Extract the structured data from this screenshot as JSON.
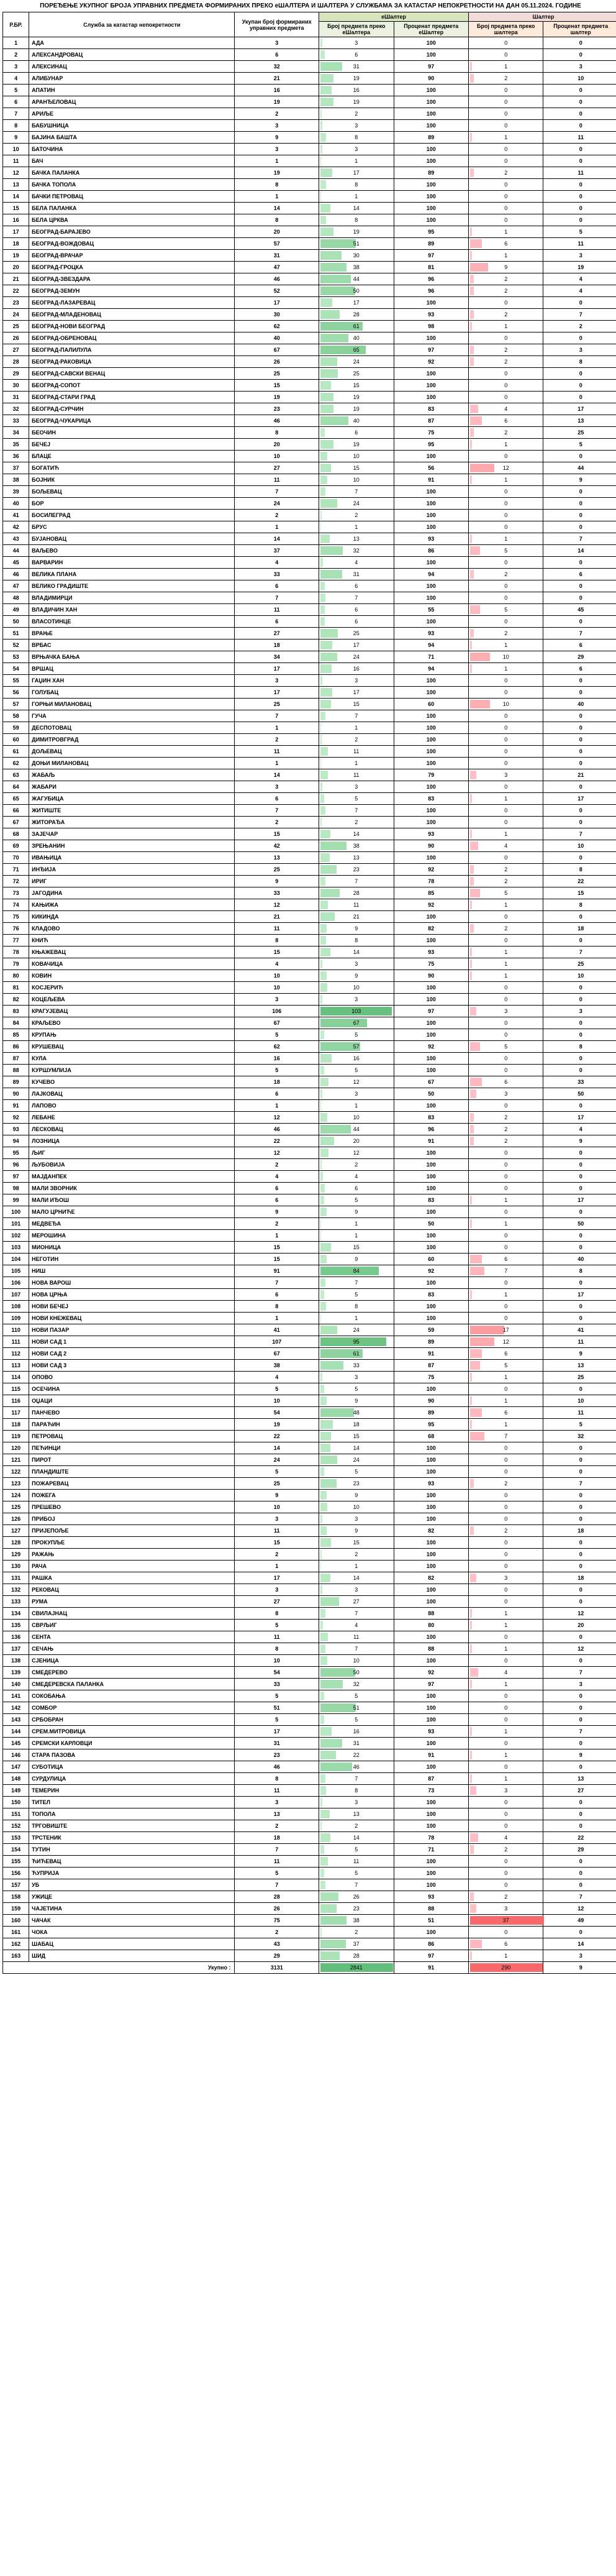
{
  "title": "ПОРЕЂЕЊЕ УКУПНОГ БРОЈА УПРАВНИХ ПРЕДМЕТА ФОРМИРАНИХ ПРЕКО еШАЛТЕРА И ШАЛТЕРА У СЛУЖБАМА ЗА КАТАСТАР НЕПОКРЕТНОСТИ НА ДАН 05.11.2024. ГОДИНЕ",
  "headers": {
    "rb": "Р.БР.",
    "name": "Служба за катастар непокретности",
    "total": "Укупан број формираних управних предмета",
    "e_group": "еШалтер",
    "s_group": "Шалтер",
    "e_cnt": "Број предмета преко еШалтера",
    "e_pct": "Проценат предмета еШалтер",
    "s_cnt": "Број предмета преко шалтера",
    "s_pct": "Проценат предмета шалтер"
  },
  "colors": {
    "e_bar": "#c6efce",
    "s_bar": "#ffc7ce",
    "e_bar_strong": "#63be7b",
    "s_bar_strong": "#f8696b"
  },
  "footer": {
    "label": "Укупно :",
    "total": 3131,
    "e_cnt": 2841,
    "e_pct": 91,
    "s_cnt": 290,
    "s_pct": 9
  },
  "max_total": 107,
  "rows": [
    {
      "n": "АДА",
      "t": 3,
      "ec": 3,
      "ep": 100,
      "sc": 0,
      "sp": 0
    },
    {
      "n": "АЛЕКСАНДРОВАЦ",
      "t": 6,
      "ec": 6,
      "ep": 100,
      "sc": 0,
      "sp": 0
    },
    {
      "n": "АЛЕКСИНАЦ",
      "t": 32,
      "ec": 31,
      "ep": 97,
      "sc": 1,
      "sp": 3
    },
    {
      "n": "АЛИБУНАР",
      "t": 21,
      "ec": 19,
      "ep": 90,
      "sc": 2,
      "sp": 10
    },
    {
      "n": "АПАТИН",
      "t": 16,
      "ec": 16,
      "ep": 100,
      "sc": 0,
      "sp": 0
    },
    {
      "n": "АРАНЂЕЛОВАЦ",
      "t": 19,
      "ec": 19,
      "ep": 100,
      "sc": 0,
      "sp": 0
    },
    {
      "n": "АРИЉЕ",
      "t": 2,
      "ec": 2,
      "ep": 100,
      "sc": 0,
      "sp": 0
    },
    {
      "n": "БАБУШНИЦА",
      "t": 3,
      "ec": 3,
      "ep": 100,
      "sc": 0,
      "sp": 0
    },
    {
      "n": "БАЈИНА БАШТА",
      "t": 9,
      "ec": 8,
      "ep": 89,
      "sc": 1,
      "sp": 11
    },
    {
      "n": "БАТОЧИНА",
      "t": 3,
      "ec": 3,
      "ep": 100,
      "sc": 0,
      "sp": 0
    },
    {
      "n": "БАЧ",
      "t": 1,
      "ec": 1,
      "ep": 100,
      "sc": 0,
      "sp": 0
    },
    {
      "n": "БАЧКА ПАЛАНКА",
      "t": 19,
      "ec": 17,
      "ep": 89,
      "sc": 2,
      "sp": 11
    },
    {
      "n": "БАЧКА ТОПОЛА",
      "t": 8,
      "ec": 8,
      "ep": 100,
      "sc": 0,
      "sp": 0
    },
    {
      "n": "БАЧКИ ПЕТРОВАЦ",
      "t": 1,
      "ec": 1,
      "ep": 100,
      "sc": 0,
      "sp": 0
    },
    {
      "n": "БЕЛА ПАЛАНКА",
      "t": 14,
      "ec": 14,
      "ep": 100,
      "sc": 0,
      "sp": 0
    },
    {
      "n": "БЕЛА ЦРКВА",
      "t": 8,
      "ec": 8,
      "ep": 100,
      "sc": 0,
      "sp": 0
    },
    {
      "n": "БЕОГРАД-БАРАЈЕВО",
      "t": 20,
      "ec": 19,
      "ep": 95,
      "sc": 1,
      "sp": 5
    },
    {
      "n": "БЕОГРАД-ВОЖДОВАЦ",
      "t": 57,
      "ec": 51,
      "ep": 89,
      "sc": 6,
      "sp": 11
    },
    {
      "n": "БЕОГРАД-ВРАЧАР",
      "t": 31,
      "ec": 30,
      "ep": 97,
      "sc": 1,
      "sp": 3
    },
    {
      "n": "БЕОГРАД-ГРОЦКА",
      "t": 47,
      "ec": 38,
      "ep": 81,
      "sc": 9,
      "sp": 19
    },
    {
      "n": "БЕОГРАД-ЗВЕЗДАРА",
      "t": 46,
      "ec": 44,
      "ep": 96,
      "sc": 2,
      "sp": 4
    },
    {
      "n": "БЕОГРАД-ЗЕМУН",
      "t": 52,
      "ec": 50,
      "ep": 96,
      "sc": 2,
      "sp": 4
    },
    {
      "n": "БЕОГРАД-ЛАЗАРЕВАЦ",
      "t": 17,
      "ec": 17,
      "ep": 100,
      "sc": 0,
      "sp": 0
    },
    {
      "n": "БЕОГРАД-МЛАДЕНОВАЦ",
      "t": 30,
      "ec": 28,
      "ep": 93,
      "sc": 2,
      "sp": 7
    },
    {
      "n": "БЕОГРАД-НОВИ БЕОГРАД",
      "t": 62,
      "ec": 61,
      "ep": 98,
      "sc": 1,
      "sp": 2
    },
    {
      "n": "БЕОГРАД-ОБРЕНОВАЦ",
      "t": 40,
      "ec": 40,
      "ep": 100,
      "sc": 0,
      "sp": 0
    },
    {
      "n": "БЕОГРАД-ПАЛИЛУЛА",
      "t": 67,
      "ec": 65,
      "ep": 97,
      "sc": 2,
      "sp": 3
    },
    {
      "n": "БЕОГРАД-РАКОВИЦА",
      "t": 26,
      "ec": 24,
      "ep": 92,
      "sc": 2,
      "sp": 8
    },
    {
      "n": "БЕОГРАД-САВСКИ ВЕНАЦ",
      "t": 25,
      "ec": 25,
      "ep": 100,
      "sc": 0,
      "sp": 0
    },
    {
      "n": "БЕОГРАД-СОПОТ",
      "t": 15,
      "ec": 15,
      "ep": 100,
      "sc": 0,
      "sp": 0
    },
    {
      "n": "БЕОГРАД-СТАРИ ГРАД",
      "t": 19,
      "ec": 19,
      "ep": 100,
      "sc": 0,
      "sp": 0
    },
    {
      "n": "БЕОГРАД-СУРЧИН",
      "t": 23,
      "ec": 19,
      "ep": 83,
      "sc": 4,
      "sp": 17
    },
    {
      "n": "БЕОГРАД-ЧУКАРИЦА",
      "t": 46,
      "ec": 40,
      "ep": 87,
      "sc": 6,
      "sp": 13
    },
    {
      "n": "БЕОЧИН",
      "t": 8,
      "ec": 6,
      "ep": 75,
      "sc": 2,
      "sp": 25
    },
    {
      "n": "БЕЧЕЈ",
      "t": 20,
      "ec": 19,
      "ep": 95,
      "sc": 1,
      "sp": 5
    },
    {
      "n": "БЛАЦЕ",
      "t": 10,
      "ec": 10,
      "ep": 100,
      "sc": 0,
      "sp": 0
    },
    {
      "n": "БОГАТИЋ",
      "t": 27,
      "ec": 15,
      "ep": 56,
      "sc": 12,
      "sp": 44
    },
    {
      "n": "БОЈНИК",
      "t": 11,
      "ec": 10,
      "ep": 91,
      "sc": 1,
      "sp": 9
    },
    {
      "n": "БОЉЕВАЦ",
      "t": 7,
      "ec": 7,
      "ep": 100,
      "sc": 0,
      "sp": 0
    },
    {
      "n": "БОР",
      "t": 24,
      "ec": 24,
      "ep": 100,
      "sc": 0,
      "sp": 0
    },
    {
      "n": "БОСИЛЕГРАД",
      "t": 2,
      "ec": 2,
      "ep": 100,
      "sc": 0,
      "sp": 0
    },
    {
      "n": "БРУС",
      "t": 1,
      "ec": 1,
      "ep": 100,
      "sc": 0,
      "sp": 0
    },
    {
      "n": "БУЈАНОВАЦ",
      "t": 14,
      "ec": 13,
      "ep": 93,
      "sc": 1,
      "sp": 7
    },
    {
      "n": "ВАЉЕВО",
      "t": 37,
      "ec": 32,
      "ep": 86,
      "sc": 5,
      "sp": 14
    },
    {
      "n": "ВАРВАРИН",
      "t": 4,
      "ec": 4,
      "ep": 100,
      "sc": 0,
      "sp": 0
    },
    {
      "n": "ВЕЛИКА ПЛАНА",
      "t": 33,
      "ec": 31,
      "ep": 94,
      "sc": 2,
      "sp": 6
    },
    {
      "n": "ВЕЛИКО ГРАДИШТЕ",
      "t": 6,
      "ec": 6,
      "ep": 100,
      "sc": 0,
      "sp": 0
    },
    {
      "n": "ВЛАДИМИРЦИ",
      "t": 7,
      "ec": 7,
      "ep": 100,
      "sc": 0,
      "sp": 0
    },
    {
      "n": "ВЛАДИЧИН ХАН",
      "t": 11,
      "ec": 6,
      "ep": 55,
      "sc": 5,
      "sp": 45
    },
    {
      "n": "ВЛАСОТИНЦЕ",
      "t": 6,
      "ec": 6,
      "ep": 100,
      "sc": 0,
      "sp": 0
    },
    {
      "n": "ВРАЊЕ",
      "t": 27,
      "ec": 25,
      "ep": 93,
      "sc": 2,
      "sp": 7
    },
    {
      "n": "ВРБАС",
      "t": 18,
      "ec": 17,
      "ep": 94,
      "sc": 1,
      "sp": 6
    },
    {
      "n": "ВРЊАЧКА БАЊА",
      "t": 34,
      "ec": 24,
      "ep": 71,
      "sc": 10,
      "sp": 29
    },
    {
      "n": "ВРШАЦ",
      "t": 17,
      "ec": 16,
      "ep": 94,
      "sc": 1,
      "sp": 6
    },
    {
      "n": "ГАЏИН ХАН",
      "t": 3,
      "ec": 3,
      "ep": 100,
      "sc": 0,
      "sp": 0
    },
    {
      "n": "ГОЛУБАЦ",
      "t": 17,
      "ec": 17,
      "ep": 100,
      "sc": 0,
      "sp": 0
    },
    {
      "n": "ГОРЊИ МИЛАНОВАЦ",
      "t": 25,
      "ec": 15,
      "ep": 60,
      "sc": 10,
      "sp": 40
    },
    {
      "n": "ГУЧА",
      "t": 7,
      "ec": 7,
      "ep": 100,
      "sc": 0,
      "sp": 0
    },
    {
      "n": "ДЕСПОТОВАЦ",
      "t": 1,
      "ec": 1,
      "ep": 100,
      "sc": 0,
      "sp": 0
    },
    {
      "n": "ДИМИТРОВГРАД",
      "t": 2,
      "ec": 2,
      "ep": 100,
      "sc": 0,
      "sp": 0
    },
    {
      "n": "ДОЉЕВАЦ",
      "t": 11,
      "ec": 11,
      "ep": 100,
      "sc": 0,
      "sp": 0
    },
    {
      "n": "ДОЊИ МИЛАНОВАЦ",
      "t": 1,
      "ec": 1,
      "ep": 100,
      "sc": 0,
      "sp": 0
    },
    {
      "n": "ЖАБАЉ",
      "t": 14,
      "ec": 11,
      "ep": 79,
      "sc": 3,
      "sp": 21
    },
    {
      "n": "ЖАБАРИ",
      "t": 3,
      "ec": 3,
      "ep": 100,
      "sc": 0,
      "sp": 0
    },
    {
      "n": "ЖАГУБИЦА",
      "t": 6,
      "ec": 5,
      "ep": 83,
      "sc": 1,
      "sp": 17
    },
    {
      "n": "ЖИТИШТЕ",
      "t": 7,
      "ec": 7,
      "ep": 100,
      "sc": 0,
      "sp": 0
    },
    {
      "n": "ЖИТОРАЂА",
      "t": 2,
      "ec": 2,
      "ep": 100,
      "sc": 0,
      "sp": 0
    },
    {
      "n": "ЗАЈЕЧАР",
      "t": 15,
      "ec": 14,
      "ep": 93,
      "sc": 1,
      "sp": 7
    },
    {
      "n": "ЗРЕЊАНИН",
      "t": 42,
      "ec": 38,
      "ep": 90,
      "sc": 4,
      "sp": 10
    },
    {
      "n": "ИВАЊИЦА",
      "t": 13,
      "ec": 13,
      "ep": 100,
      "sc": 0,
      "sp": 0
    },
    {
      "n": "ИНЂИЈА",
      "t": 25,
      "ec": 23,
      "ep": 92,
      "sc": 2,
      "sp": 8
    },
    {
      "n": "ИРИГ",
      "t": 9,
      "ec": 7,
      "ep": 78,
      "sc": 2,
      "sp": 22
    },
    {
      "n": "ЈАГОДИНА",
      "t": 33,
      "ec": 28,
      "ep": 85,
      "sc": 5,
      "sp": 15
    },
    {
      "n": "КАЊИЖА",
      "t": 12,
      "ec": 11,
      "ep": 92,
      "sc": 1,
      "sp": 8
    },
    {
      "n": "КИКИНДА",
      "t": 21,
      "ec": 21,
      "ep": 100,
      "sc": 0,
      "sp": 0
    },
    {
      "n": "КЛАДОВО",
      "t": 11,
      "ec": 9,
      "ep": 82,
      "sc": 2,
      "sp": 18
    },
    {
      "n": "КНИЋ",
      "t": 8,
      "ec": 8,
      "ep": 100,
      "sc": 0,
      "sp": 0
    },
    {
      "n": "КЊАЖЕВАЦ",
      "t": 15,
      "ec": 14,
      "ep": 93,
      "sc": 1,
      "sp": 7
    },
    {
      "n": "КОВАЧИЦА",
      "t": 4,
      "ec": 3,
      "ep": 75,
      "sc": 1,
      "sp": 25
    },
    {
      "n": "КОВИН",
      "t": 10,
      "ec": 9,
      "ep": 90,
      "sc": 1,
      "sp": 10
    },
    {
      "n": "КОСЈЕРИЋ",
      "t": 10,
      "ec": 10,
      "ep": 100,
      "sc": 0,
      "sp": 0
    },
    {
      "n": "КОЦЕЉЕВА",
      "t": 3,
      "ec": 3,
      "ep": 100,
      "sc": 0,
      "sp": 0
    },
    {
      "n": "КРАГУЈЕВАЦ",
      "t": 106,
      "ec": 103,
      "ep": 97,
      "sc": 3,
      "sp": 3
    },
    {
      "n": "КРАЉЕВО",
      "t": 67,
      "ec": 67,
      "ep": 100,
      "sc": 0,
      "sp": 0
    },
    {
      "n": "КРУПАЊ",
      "t": 5,
      "ec": 5,
      "ep": 100,
      "sc": 0,
      "sp": 0
    },
    {
      "n": "КРУШЕВАЦ",
      "t": 62,
      "ec": 57,
      "ep": 92,
      "sc": 5,
      "sp": 8
    },
    {
      "n": "КУЛА",
      "t": 16,
      "ec": 16,
      "ep": 100,
      "sc": 0,
      "sp": 0
    },
    {
      "n": "КУРШУМЛИЈА",
      "t": 5,
      "ec": 5,
      "ep": 100,
      "sc": 0,
      "sp": 0
    },
    {
      "n": "КУЧЕВО",
      "t": 18,
      "ec": 12,
      "ep": 67,
      "sc": 6,
      "sp": 33
    },
    {
      "n": "ЛАЈКОВАЦ",
      "t": 6,
      "ec": 3,
      "ep": 50,
      "sc": 3,
      "sp": 50
    },
    {
      "n": "ЛАПОВО",
      "t": 1,
      "ec": 1,
      "ep": 100,
      "sc": 0,
      "sp": 0
    },
    {
      "n": "ЛЕБАНЕ",
      "t": 12,
      "ec": 10,
      "ep": 83,
      "sc": 2,
      "sp": 17
    },
    {
      "n": "ЛЕСКОВАЦ",
      "t": 46,
      "ec": 44,
      "ep": 96,
      "sc": 2,
      "sp": 4
    },
    {
      "n": "ЛОЗНИЦА",
      "t": 22,
      "ec": 20,
      "ep": 91,
      "sc": 2,
      "sp": 9
    },
    {
      "n": "ЉИГ",
      "t": 12,
      "ec": 12,
      "ep": 100,
      "sc": 0,
      "sp": 0
    },
    {
      "n": "ЉУБОВИЈА",
      "t": 2,
      "ec": 2,
      "ep": 100,
      "sc": 0,
      "sp": 0
    },
    {
      "n": "МАЈДАНПЕК",
      "t": 4,
      "ec": 4,
      "ep": 100,
      "sc": 0,
      "sp": 0
    },
    {
      "n": "МАЛИ ЗВОРНИК",
      "t": 6,
      "ec": 6,
      "ep": 100,
      "sc": 0,
      "sp": 0
    },
    {
      "n": "МАЛИ ИЂОШ",
      "t": 6,
      "ec": 5,
      "ep": 83,
      "sc": 1,
      "sp": 17
    },
    {
      "n": "МАЛО ЦРНИЋЕ",
      "t": 9,
      "ec": 9,
      "ep": 100,
      "sc": 0,
      "sp": 0
    },
    {
      "n": "МЕДВЕЂА",
      "t": 2,
      "ec": 1,
      "ep": 50,
      "sc": 1,
      "sp": 50
    },
    {
      "n": "МЕРОШИНА",
      "t": 1,
      "ec": 1,
      "ep": 100,
      "sc": 0,
      "sp": 0
    },
    {
      "n": "МИОНИЦА",
      "t": 15,
      "ec": 15,
      "ep": 100,
      "sc": 0,
      "sp": 0
    },
    {
      "n": "НЕГОТИН",
      "t": 15,
      "ec": 9,
      "ep": 60,
      "sc": 6,
      "sp": 40
    },
    {
      "n": "НИШ",
      "t": 91,
      "ec": 84,
      "ep": 92,
      "sc": 7,
      "sp": 8
    },
    {
      "n": "НОВА ВАРОШ",
      "t": 7,
      "ec": 7,
      "ep": 100,
      "sc": 0,
      "sp": 0
    },
    {
      "n": "НОВА ЦРЊА",
      "t": 6,
      "ec": 5,
      "ep": 83,
      "sc": 1,
      "sp": 17
    },
    {
      "n": "НОВИ БЕЧЕЈ",
      "t": 8,
      "ec": 8,
      "ep": 100,
      "sc": 0,
      "sp": 0
    },
    {
      "n": "НОВИ КНЕЖЕВАЦ",
      "t": 1,
      "ec": 1,
      "ep": 100,
      "sc": 0,
      "sp": 0
    },
    {
      "n": "НОВИ ПАЗАР",
      "t": 41,
      "ec": 24,
      "ep": 59,
      "sc": 17,
      "sp": 41
    },
    {
      "n": "НОВИ САД 1",
      "t": 107,
      "ec": 95,
      "ep": 89,
      "sc": 12,
      "sp": 11
    },
    {
      "n": "НОВИ САД 2",
      "t": 67,
      "ec": 61,
      "ep": 91,
      "sc": 6,
      "sp": 9
    },
    {
      "n": "НОВИ САД 3",
      "t": 38,
      "ec": 33,
      "ep": 87,
      "sc": 5,
      "sp": 13
    },
    {
      "n": "ОПОВО",
      "t": 4,
      "ec": 3,
      "ep": 75,
      "sc": 1,
      "sp": 25
    },
    {
      "n": "ОСЕЧИНА",
      "t": 5,
      "ec": 5,
      "ep": 100,
      "sc": 0,
      "sp": 0
    },
    {
      "n": "ОЏАЦИ",
      "t": 10,
      "ec": 9,
      "ep": 90,
      "sc": 1,
      "sp": 10
    },
    {
      "n": "ПАНЧЕВО",
      "t": 54,
      "ec": 48,
      "ep": 89,
      "sc": 6,
      "sp": 11
    },
    {
      "n": "ПАРАЋИН",
      "t": 19,
      "ec": 18,
      "ep": 95,
      "sc": 1,
      "sp": 5
    },
    {
      "n": "ПЕТРОВАЦ",
      "t": 22,
      "ec": 15,
      "ep": 68,
      "sc": 7,
      "sp": 32
    },
    {
      "n": "ПЕЋИНЦИ",
      "t": 14,
      "ec": 14,
      "ep": 100,
      "sc": 0,
      "sp": 0
    },
    {
      "n": "ПИРОТ",
      "t": 24,
      "ec": 24,
      "ep": 100,
      "sc": 0,
      "sp": 0
    },
    {
      "n": "ПЛАНДИШТЕ",
      "t": 5,
      "ec": 5,
      "ep": 100,
      "sc": 0,
      "sp": 0
    },
    {
      "n": "ПОЖАРЕВАЦ",
      "t": 25,
      "ec": 23,
      "ep": 93,
      "sc": 2,
      "sp": 7
    },
    {
      "n": "ПОЖЕГА",
      "t": 9,
      "ec": 9,
      "ep": 100,
      "sc": 0,
      "sp": 0
    },
    {
      "n": "ПРЕШЕВО",
      "t": 10,
      "ec": 10,
      "ep": 100,
      "sc": 0,
      "sp": 0
    },
    {
      "n": "ПРИБОЈ",
      "t": 3,
      "ec": 3,
      "ep": 100,
      "sc": 0,
      "sp": 0
    },
    {
      "n": "ПРИЈЕПОЉЕ",
      "t": 11,
      "ec": 9,
      "ep": 82,
      "sc": 2,
      "sp": 18
    },
    {
      "n": "ПРОКУПЉЕ",
      "t": 15,
      "ec": 15,
      "ep": 100,
      "sc": 0,
      "sp": 0
    },
    {
      "n": "РАЖАЊ",
      "t": 2,
      "ec": 2,
      "ep": 100,
      "sc": 0,
      "sp": 0
    },
    {
      "n": "РАЧА",
      "t": 1,
      "ec": 1,
      "ep": 100,
      "sc": 0,
      "sp": 0
    },
    {
      "n": "РАШКА",
      "t": 17,
      "ec": 14,
      "ep": 82,
      "sc": 3,
      "sp": 18
    },
    {
      "n": "РЕКОВАЦ",
      "t": 3,
      "ec": 3,
      "ep": 100,
      "sc": 0,
      "sp": 0
    },
    {
      "n": "РУМА",
      "t": 27,
      "ec": 27,
      "ep": 100,
      "sc": 0,
      "sp": 0
    },
    {
      "n": "СВИЛАЈНАЦ",
      "t": 8,
      "ec": 7,
      "ep": 88,
      "sc": 1,
      "sp": 12
    },
    {
      "n": "СВРЉИГ",
      "t": 5,
      "ec": 4,
      "ep": 80,
      "sc": 1,
      "sp": 20
    },
    {
      "n": "СЕНТА",
      "t": 11,
      "ec": 11,
      "ep": 100,
      "sc": 0,
      "sp": 0
    },
    {
      "n": "СЕЧАЊ",
      "t": 8,
      "ec": 7,
      "ep": 88,
      "sc": 1,
      "sp": 12
    },
    {
      "n": "СЈЕНИЦА",
      "t": 10,
      "ec": 10,
      "ep": 100,
      "sc": 0,
      "sp": 0
    },
    {
      "n": "СМЕДЕРЕВО",
      "t": 54,
      "ec": 50,
      "ep": 92,
      "sc": 4,
      "sp": 7
    },
    {
      "n": "СМЕДЕРЕВСКА ПАЛАНКА",
      "t": 33,
      "ec": 32,
      "ep": 97,
      "sc": 1,
      "sp": 3
    },
    {
      "n": "СОКОБАЊА",
      "t": 5,
      "ec": 5,
      "ep": 100,
      "sc": 0,
      "sp": 0
    },
    {
      "n": "СОМБОР",
      "t": 51,
      "ec": 51,
      "ep": 100,
      "sc": 0,
      "sp": 0
    },
    {
      "n": "СРБОБРАН",
      "t": 5,
      "ec": 5,
      "ep": 100,
      "sc": 0,
      "sp": 0
    },
    {
      "n": "СРЕМ.МИТРОВИЦА",
      "t": 17,
      "ec": 16,
      "ep": 93,
      "sc": 1,
      "sp": 7
    },
    {
      "n": "СРЕМСКИ КАРЛОВЦИ",
      "t": 31,
      "ec": 31,
      "ep": 100,
      "sc": 0,
      "sp": 0
    },
    {
      "n": "СТАРА ПАЗОВА",
      "t": 23,
      "ec": 22,
      "ep": 91,
      "sc": 1,
      "sp": 9
    },
    {
      "n": "СУБОТИЦА",
      "t": 46,
      "ec": 46,
      "ep": 100,
      "sc": 0,
      "sp": 0
    },
    {
      "n": "СУРДУЛИЦА",
      "t": 8,
      "ec": 7,
      "ep": 87,
      "sc": 1,
      "sp": 13
    },
    {
      "n": "ТЕМЕРИН",
      "t": 11,
      "ec": 8,
      "ep": 73,
      "sc": 3,
      "sp": 27
    },
    {
      "n": "ТИТЕЛ",
      "t": 3,
      "ec": 3,
      "ep": 100,
      "sc": 0,
      "sp": 0
    },
    {
      "n": "ТОПОЛА",
      "t": 13,
      "ec": 13,
      "ep": 100,
      "sc": 0,
      "sp": 0
    },
    {
      "n": "ТРГОВИШТЕ",
      "t": 2,
      "ec": 2,
      "ep": 100,
      "sc": 0,
      "sp": 0
    },
    {
      "n": "ТРСТЕНИК",
      "t": 18,
      "ec": 14,
      "ep": 78,
      "sc": 4,
      "sp": 22
    },
    {
      "n": "ТУТИН",
      "t": 7,
      "ec": 5,
      "ep": 71,
      "sc": 2,
      "sp": 29
    },
    {
      "n": "ЋИЋЕВАЦ",
      "t": 11,
      "ec": 11,
      "ep": 100,
      "sc": 0,
      "sp": 0
    },
    {
      "n": "ЋУПРИЈА",
      "t": 5,
      "ec": 5,
      "ep": 100,
      "sc": 0,
      "sp": 0
    },
    {
      "n": "УБ",
      "t": 7,
      "ec": 7,
      "ep": 100,
      "sc": 0,
      "sp": 0
    },
    {
      "n": "УЖИЦЕ",
      "t": 28,
      "ec": 26,
      "ep": 93,
      "sc": 2,
      "sp": 7
    },
    {
      "n": "ЧАЈЕТИНА",
      "t": 26,
      "ec": 23,
      "ep": 88,
      "sc": 3,
      "sp": 12
    },
    {
      "n": "ЧАЧАК",
      "t": 75,
      "ec": 38,
      "ep": 51,
      "sc": 37,
      "sp": 49
    },
    {
      "n": "ЧОКА",
      "t": 2,
      "ec": 2,
      "ep": 100,
      "sc": 0,
      "sp": 0
    },
    {
      "n": "ШАБАЦ",
      "t": 43,
      "ec": 37,
      "ep": 86,
      "sc": 6,
      "sp": 14
    },
    {
      "n": "ШИД",
      "t": 29,
      "ec": 28,
      "ep": 97,
      "sc": 1,
      "sp": 3
    }
  ]
}
